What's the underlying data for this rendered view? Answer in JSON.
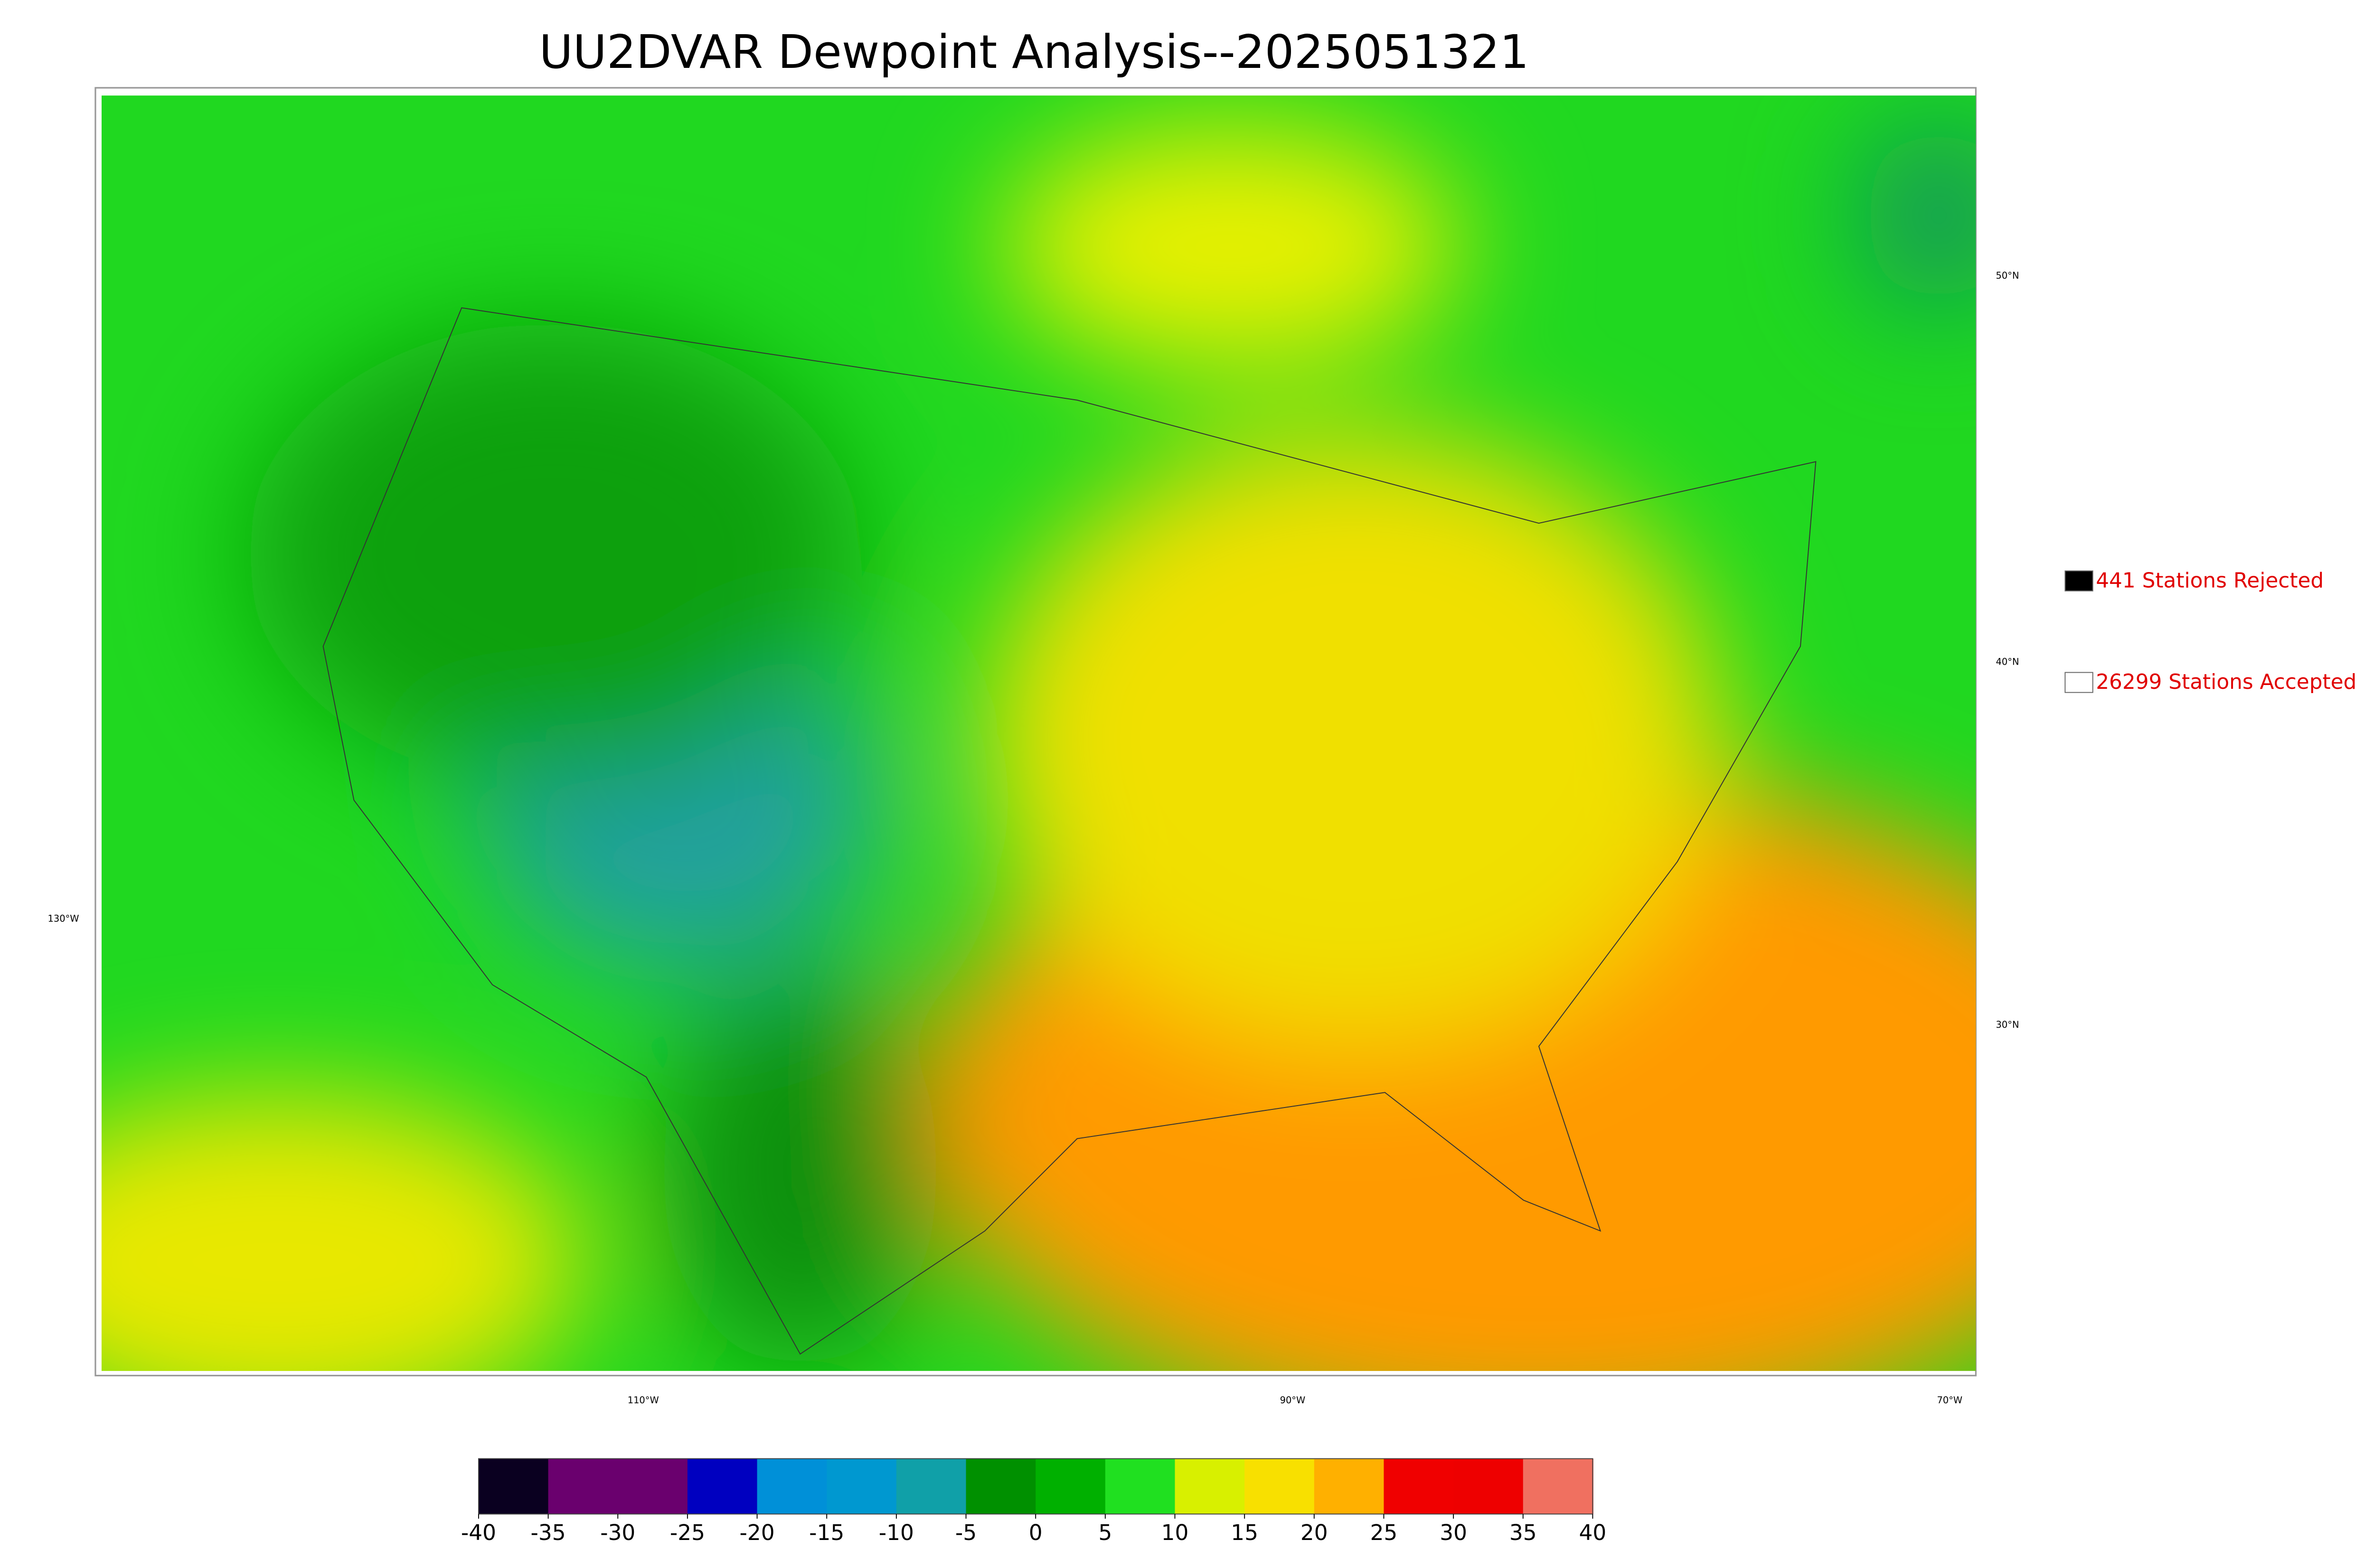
{
  "title": "UU2DVAR Dewpoint Analysis--2025051321",
  "map": {
    "lat_labels": [
      "50°N",
      "40°N",
      "30°N"
    ],
    "lon_labels": [
      "130°W",
      "110°W",
      "90°W",
      "70°W"
    ]
  },
  "legend": [
    {
      "label": "441 Stations Rejected",
      "color": "#000000"
    },
    {
      "label": "26299 Stations Accepted",
      "color": "#ffffff"
    }
  ],
  "colorbar": {
    "ticks": [
      -40,
      -35,
      -30,
      -25,
      -20,
      -15,
      -10,
      -5,
      0,
      5,
      10,
      15,
      20,
      25,
      30,
      35,
      40
    ],
    "colors": [
      "#0a0020",
      "#6a006e",
      "#6a006e",
      "#0000c0",
      "#0090d8",
      "#0098d0",
      "#10a0a8",
      "#009000",
      "#00b000",
      "#20e020",
      "#d8f000",
      "#f8e000",
      "#ffb000",
      "#f00000",
      "#ee0000",
      "#f07060"
    ]
  }
}
